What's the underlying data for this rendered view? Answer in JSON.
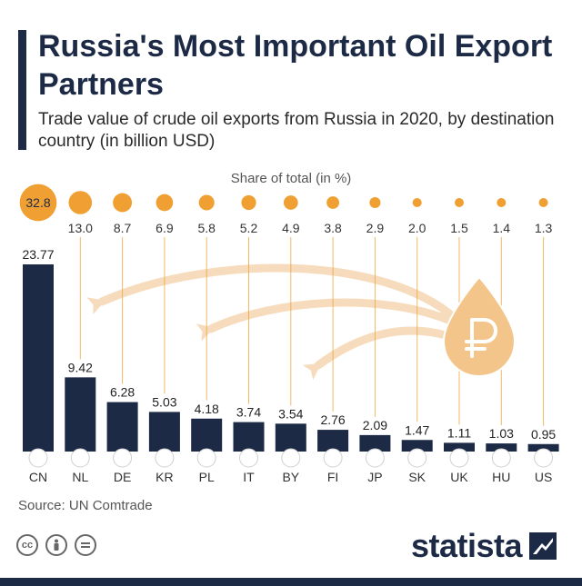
{
  "header": {
    "title": "Russia's Most Important Oil Export Partners",
    "subtitle": "Trade value of crude oil exports from Russia in 2020, by destination country (in billion USD)"
  },
  "share_label": "Share of total (in %)",
  "source": "Source: UN Comtrade",
  "brand": {
    "name": "statista"
  },
  "license_icons": [
    "cc-icon",
    "attribution-icon",
    "no-derivatives-icon"
  ],
  "icons": {
    "oil_drop": "ruble-oil-drop-icon"
  },
  "colors": {
    "bar": "#1c2a45",
    "bubble": "#f0a033",
    "bubble_text_first": "#1c2a45",
    "arrow": "#f6dcbc",
    "drop": "#f4c58a"
  },
  "chart_data": {
    "type": "bar",
    "title": "Russia's Most Important Oil Export Partners",
    "xlabel": "",
    "ylabel": "",
    "categories": [
      "CN",
      "NL",
      "DE",
      "KR",
      "PL",
      "IT",
      "BY",
      "FI",
      "JP",
      "SK",
      "UK",
      "HU",
      "US"
    ],
    "values": [
      23.77,
      9.42,
      6.28,
      5.03,
      4.18,
      3.74,
      3.54,
      2.76,
      2.09,
      1.47,
      1.11,
      1.03,
      0.95
    ],
    "share_pct": [
      32.8,
      13.0,
      8.7,
      6.9,
      5.8,
      5.2,
      4.9,
      3.8,
      2.9,
      2.0,
      1.5,
      1.4,
      1.3
    ],
    "value_labels": [
      "23.77",
      "9.42",
      "6.28",
      "5.03",
      "4.18",
      "3.74",
      "3.54",
      "2.76",
      "2.09",
      "1.47",
      "1.11",
      "1.03",
      "0.95"
    ],
    "share_labels": [
      "32.8",
      "13.0",
      "8.7",
      "6.9",
      "5.8",
      "5.2",
      "4.9",
      "3.8",
      "2.9",
      "2.0",
      "1.5",
      "1.4",
      "1.3"
    ],
    "ylim": [
      0,
      24
    ],
    "grid": false,
    "legend": "none"
  }
}
